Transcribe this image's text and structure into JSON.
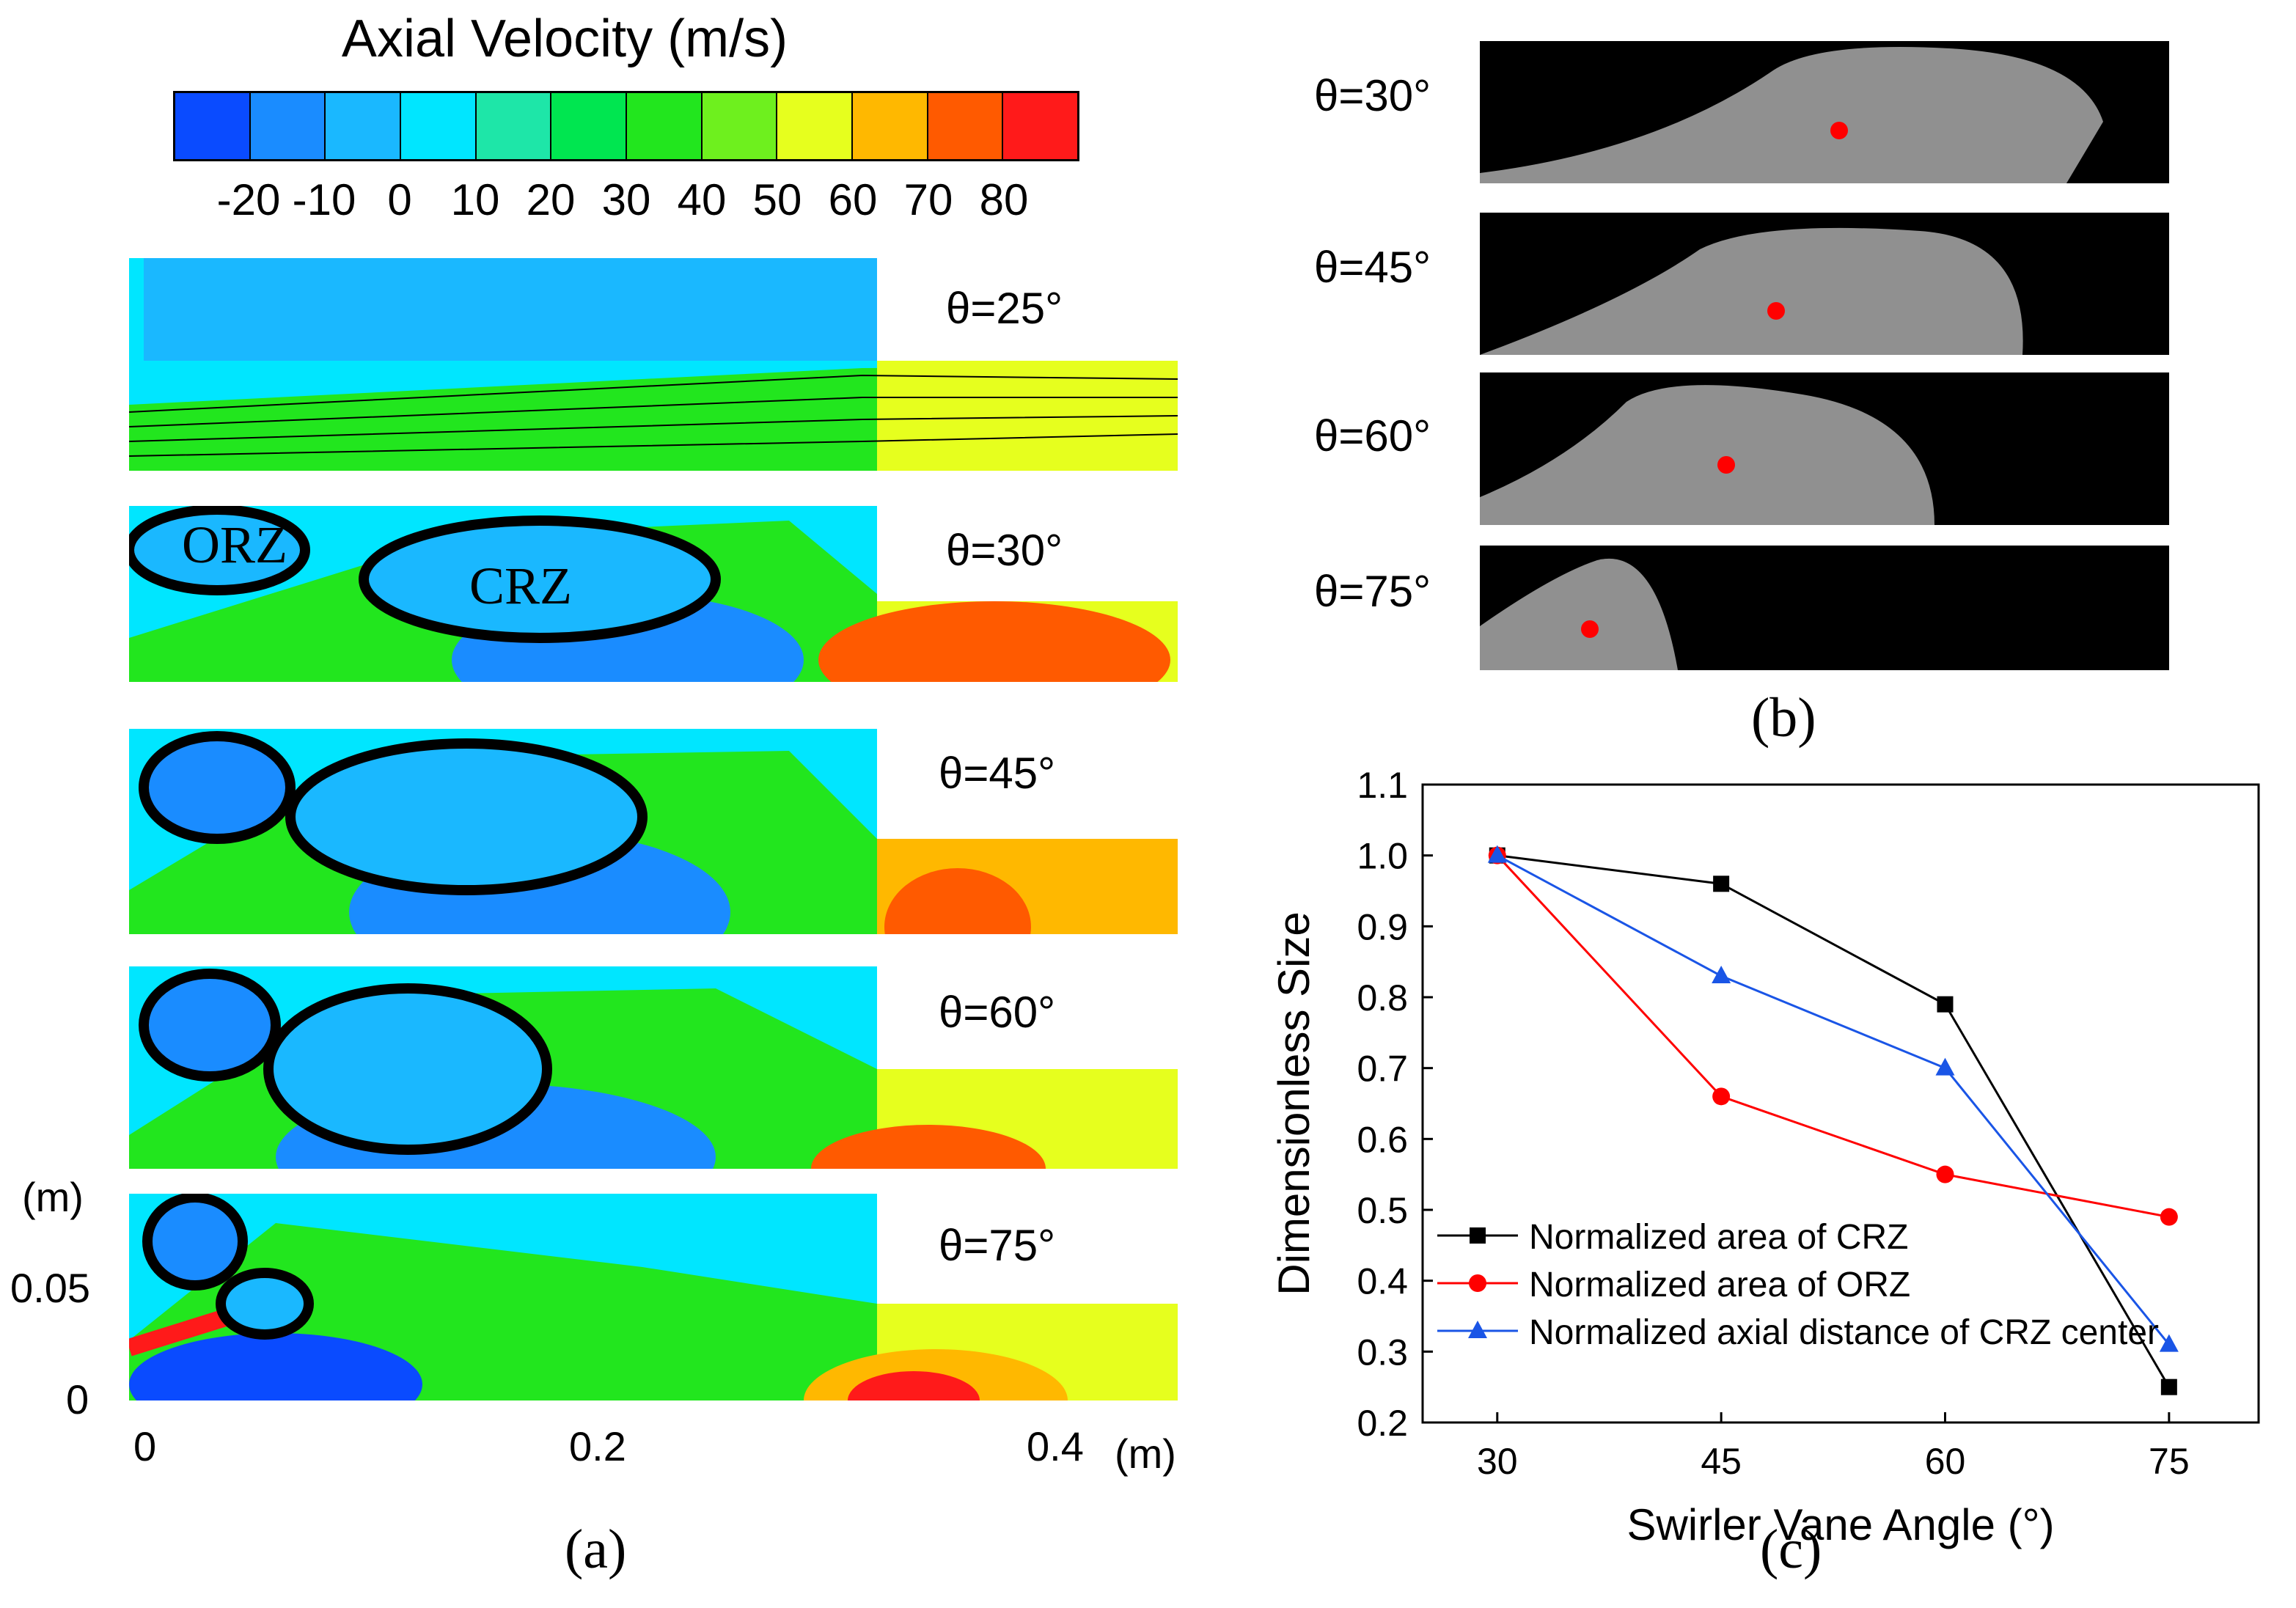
{
  "figure": {
    "colorbar": {
      "title": "Axial Velocity (m/s)",
      "ticks": [
        "-20",
        "-10",
        "0",
        "10",
        "20",
        "30",
        "40",
        "50",
        "60",
        "70",
        "80"
      ],
      "colors": [
        "#0a4bff",
        "#1a8cff",
        "#1ab8ff",
        "#00e6ff",
        "#1ee6a8",
        "#00e650",
        "#22e61e",
        "#6ef01e",
        "#e6ff1e",
        "#ffb800",
        "#ff5a00",
        "#ff1a1a"
      ]
    },
    "panel_a": {
      "caption": "(a)",
      "angles": [
        "θ=25°",
        "θ=30°",
        "θ=45°",
        "θ=60°",
        "θ=75°"
      ],
      "zone_labels": {
        "orz": "ORZ",
        "crz": "CRZ"
      },
      "y_axis": {
        "unit": "(m)",
        "ticks": [
          "0.05",
          "0"
        ]
      },
      "x_axis": {
        "ticks": [
          "0",
          "0.2",
          "0.4"
        ],
        "unit": "(m)"
      }
    },
    "panel_b": {
      "caption": "(b)",
      "angles": [
        "θ=30°",
        "θ=45°",
        "θ=60°",
        "θ=75°"
      ]
    },
    "panel_c": {
      "caption": "(c)"
    }
  },
  "chart_data": {
    "type": "line",
    "x": [
      30,
      45,
      60,
      75
    ],
    "xlabel": "Swirler Vane Angle (°)",
    "ylabel": "Dimensionless Size",
    "xticks": [
      "30",
      "45",
      "60",
      "75"
    ],
    "yticks": [
      "0.2",
      "0.3",
      "0.4",
      "0.5",
      "0.6",
      "0.7",
      "0.8",
      "0.9",
      "1.0",
      "1.1"
    ],
    "ylim": [
      0.2,
      1.1
    ],
    "xlim": [
      25,
      81
    ],
    "legend_position": "bottom-left",
    "series": [
      {
        "name": "Normalized area of CRZ",
        "values": [
          1.0,
          0.96,
          0.79,
          0.25
        ],
        "color": "#000000",
        "marker": "square"
      },
      {
        "name": "Normalized area of ORZ",
        "values": [
          1.0,
          0.66,
          0.55,
          0.49
        ],
        "color": "#ff0000",
        "marker": "circle"
      },
      {
        "name": "Normalized axial distance of CRZ center",
        "values": [
          1.0,
          0.83,
          0.7,
          0.31
        ],
        "color": "#1a55e6",
        "marker": "triangle"
      }
    ]
  }
}
